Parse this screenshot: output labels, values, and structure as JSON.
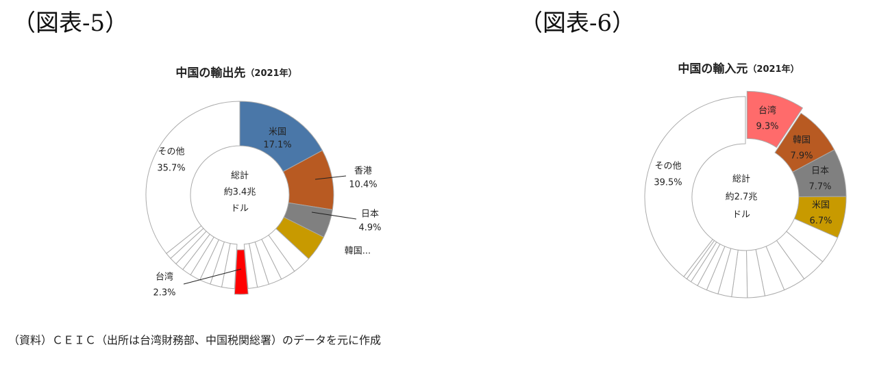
{
  "chart_data": [
    {
      "type": "donut",
      "figure_label": "（図表-5）",
      "title": "中国の輸出先",
      "subtitle": "（2021年）",
      "center_label": [
        "総計",
        "約3.4兆",
        "ドル"
      ],
      "categories": [
        "米国",
        "香港",
        "日本",
        "韓国...",
        null,
        null,
        null,
        null,
        null,
        "台湾",
        null,
        null,
        null,
        null,
        null,
        null,
        null,
        null,
        "その他"
      ],
      "values": [
        17.1,
        10.4,
        4.9,
        4.5,
        3.2,
        2.6,
        2.3,
        2.0,
        1.6,
        2.3,
        2.2,
        2.0,
        1.9,
        1.8,
        1.6,
        1.5,
        1.3,
        1.1,
        35.7
      ],
      "value_labels": [
        "17.1%",
        "10.4%",
        "4.9%",
        null,
        null,
        null,
        null,
        null,
        null,
        "2.3%",
        null,
        null,
        null,
        null,
        null,
        null,
        null,
        null,
        "35.7%"
      ],
      "colors": [
        "#4a77a8",
        "#b85a22",
        "#808080",
        "#c89a00",
        "#ffffff",
        "#ffffff",
        "#ffffff",
        "#ffffff",
        "#ffffff",
        "#ff0000",
        "#ffffff",
        "#ffffff",
        "#ffffff",
        "#ffffff",
        "#ffffff",
        "#ffffff",
        "#ffffff",
        "#ffffff",
        "#ffffff"
      ],
      "exploded_index": 9
    },
    {
      "type": "donut",
      "figure_label": "（図表-6）",
      "title": "中国の輸入元",
      "subtitle": "（2021年）",
      "center_label": [
        "総計",
        "約2.7兆",
        "ドル"
      ],
      "categories": [
        "台湾",
        "韓国",
        "日本",
        "米国",
        null,
        null,
        null,
        null,
        null,
        null,
        null,
        null,
        null,
        null,
        null,
        null,
        "その他"
      ],
      "values": [
        9.3,
        7.9,
        7.7,
        6.7,
        4.5,
        4.0,
        3.6,
        3.2,
        2.8,
        2.5,
        2.2,
        1.9,
        1.6,
        1.2,
        0.8,
        0.6,
        39.5
      ],
      "value_labels": [
        "9.3%",
        "7.9%",
        "7.7%",
        "6.7%",
        null,
        null,
        null,
        null,
        null,
        null,
        null,
        null,
        null,
        null,
        null,
        null,
        "39.5%"
      ],
      "colors": [
        "#ff6b6b",
        "#b85a22",
        "#808080",
        "#c89a00",
        "#ffffff",
        "#ffffff",
        "#ffffff",
        "#ffffff",
        "#ffffff",
        "#ffffff",
        "#ffffff",
        "#ffffff",
        "#ffffff",
        "#ffffff",
        "#ffffff",
        "#ffffff",
        "#ffffff"
      ],
      "exploded_index": 0
    }
  ],
  "source": "（資料）ＣＥＩＣ（出所は台湾財務部、中国税関総署）のデータを元に作成"
}
